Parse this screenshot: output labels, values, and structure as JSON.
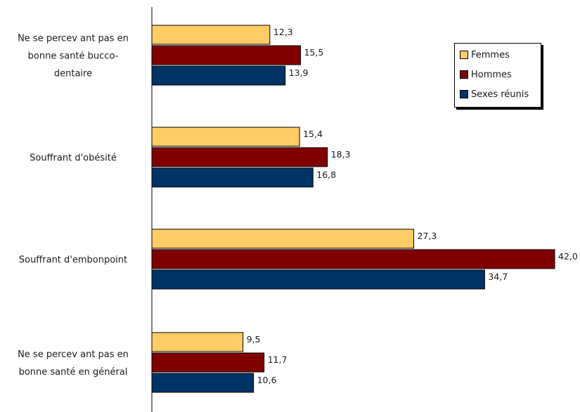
{
  "chart_data": {
    "type": "bar",
    "orientation": "horizontal",
    "categories": [
      [
        "Ne se percev ant pas en",
        "bonne santé bucco-",
        "dentaire"
      ],
      [
        "Souffrant d'obésité"
      ],
      [
        "Souffrant d'embonpoint"
      ],
      [
        "Ne se percev ant pas en",
        "bonne santé en général"
      ]
    ],
    "series": [
      {
        "name": "Femmes",
        "color": "#FFCC66",
        "values": [
          12.3,
          15.4,
          27.3,
          9.5
        ],
        "labels": [
          "12,3",
          "15,4",
          "27,3",
          "9,5"
        ]
      },
      {
        "name": "Hommes",
        "color": "#800000",
        "values": [
          15.5,
          18.3,
          42.0,
          11.7
        ],
        "labels": [
          "15,5",
          "18,3",
          "42,0",
          "11,7"
        ]
      },
      {
        "name": "Sexes réunis",
        "color": "#003366",
        "values": [
          13.9,
          16.8,
          34.7,
          10.6
        ],
        "labels": [
          "13,9",
          "16,8",
          "34,7",
          "10,6"
        ]
      }
    ],
    "xlim": [
      0,
      42
    ],
    "legend": "top-right",
    "grid": false
  }
}
